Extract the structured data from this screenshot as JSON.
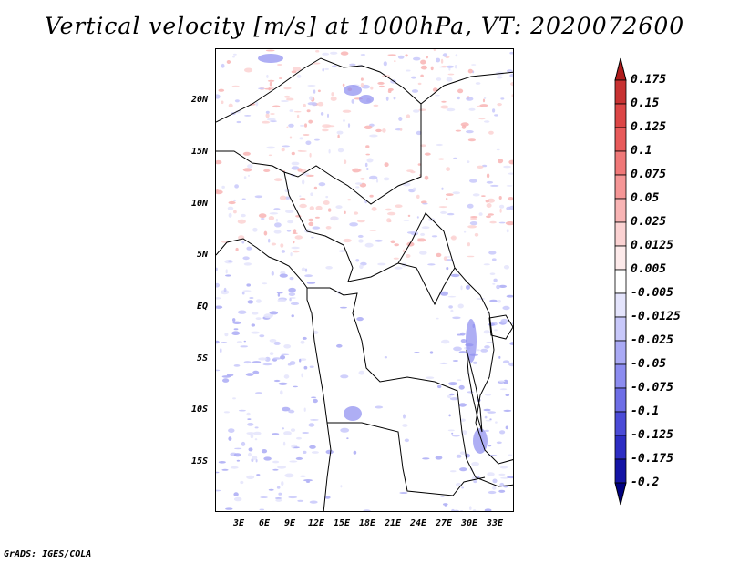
{
  "title": "Vertical velocity [m/s] at 1000hPa, VT: 2020072600",
  "credit": "GrADS: IGES/COLA",
  "map": {
    "lat_labels": [
      "20N",
      "15N",
      "10N",
      "5N",
      "EQ",
      "5S",
      "10S",
      "15S"
    ],
    "lon_labels": [
      "3E",
      "6E",
      "9E",
      "12E",
      "15E",
      "18E",
      "21E",
      "24E",
      "27E",
      "30E",
      "33E"
    ]
  },
  "colorbar": {
    "levels": [
      "0.175",
      "0.15",
      "0.125",
      "0.1",
      "0.075",
      "0.05",
      "0.025",
      "0.0125",
      "0.005",
      "-0.005",
      "-0.0125",
      "-0.025",
      "-0.05",
      "-0.075",
      "-0.1",
      "-0.125",
      "-0.175",
      "-0.2"
    ],
    "colors": [
      "#b01c1c",
      "#c83232",
      "#dc4646",
      "#e85a5a",
      "#f07878",
      "#f59696",
      "#f8b4b4",
      "#fbd2d2",
      "#fdeaea",
      "#ffffff",
      "#e4e4fc",
      "#c8c8fa",
      "#aaaaf5",
      "#8c8cf0",
      "#6e6ee6",
      "#4b4bd7",
      "#2d2dc3",
      "#1414a5",
      "#000080"
    ]
  }
}
